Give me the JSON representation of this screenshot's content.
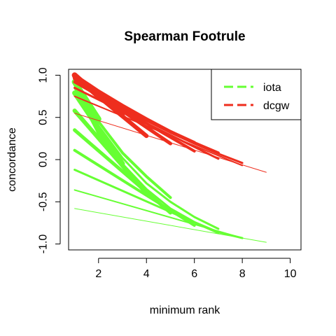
{
  "chart_data": {
    "type": "line",
    "title": "Spearman Footrule",
    "xlabel": "minimum rank",
    "ylabel": "concordance",
    "xlim": [
      0.75,
      10.45
    ],
    "ylim": [
      -1.07,
      1.07
    ],
    "x_ticks": [
      2,
      4,
      6,
      8,
      10
    ],
    "x_tick_labels": [
      "2",
      "4",
      "6",
      "8",
      "10"
    ],
    "y_ticks": [
      -1.0,
      -0.5,
      0.0,
      0.5,
      1.0
    ],
    "y_tick_labels": [
      "-1.0",
      "-0.5",
      "0.0",
      "0.5",
      "1.0"
    ],
    "grid": false,
    "legend": {
      "position": "top-right",
      "entries": [
        {
          "label": "iota",
          "color": "#66ff33",
          "style": "dashed"
        },
        {
          "label": "dcgw",
          "color": "#ee2e1e",
          "style": "dashed"
        }
      ]
    },
    "series": [
      {
        "group": "iota",
        "color": "#66ff33",
        "width": 1,
        "x": [
          1,
          9
        ],
        "y": [
          -0.58,
          -0.98
        ]
      },
      {
        "group": "iota",
        "color": "#66ff33",
        "width": 2,
        "x": [
          1,
          8
        ],
        "y": [
          -0.36,
          -0.93
        ]
      },
      {
        "group": "iota",
        "color": "#66ff33",
        "width": 3,
        "x": [
          1,
          7
        ],
        "y": [
          -0.12,
          -0.87
        ]
      },
      {
        "group": "iota",
        "color": "#66ff33",
        "width": 4,
        "x": [
          1,
          6
        ],
        "y": [
          0.11,
          -0.78
        ]
      },
      {
        "group": "iota",
        "color": "#66ff33",
        "width": 5,
        "x": [
          1,
          5
        ],
        "y": [
          0.35,
          -0.63
        ]
      },
      {
        "group": "iota",
        "color": "#66ff33",
        "width": 6,
        "x": [
          1,
          4
        ],
        "y": [
          0.58,
          -0.4
        ]
      },
      {
        "group": "iota",
        "color": "#66ff33",
        "width": 7,
        "x": [
          1,
          3
        ],
        "y": [
          0.79,
          -0.05
        ]
      },
      {
        "group": "iota",
        "color": "#66ff33",
        "width": 8,
        "x": [
          1,
          2
        ],
        "y": [
          0.92,
          0.48
        ]
      },
      {
        "group": "iota",
        "color": "#66ff33",
        "width": 3,
        "x": [
          1,
          2,
          3,
          4,
          5,
          6,
          7,
          8
        ],
        "y": [
          0.85,
          0.3,
          -0.05,
          -0.35,
          -0.58,
          -0.74,
          -0.86,
          -0.93
        ]
      },
      {
        "group": "iota",
        "color": "#66ff33",
        "width": 3,
        "x": [
          1,
          2,
          3,
          4,
          5,
          6,
          7
        ],
        "y": [
          0.88,
          0.4,
          0.02,
          -0.28,
          -0.5,
          -0.68,
          -0.82
        ]
      },
      {
        "group": "iota",
        "color": "#66ff33",
        "width": 4,
        "x": [
          1,
          2,
          3,
          4,
          5
        ],
        "y": [
          0.9,
          0.45,
          0.08,
          -0.2,
          -0.45
        ]
      },
      {
        "group": "dcgw",
        "color": "#ee2e1e",
        "width": 1,
        "x": [
          1,
          9
        ],
        "y": [
          0.55,
          -0.15
        ]
      },
      {
        "group": "dcgw",
        "color": "#ee2e1e",
        "width": 2,
        "x": [
          1,
          8
        ],
        "y": [
          0.75,
          -0.07
        ]
      },
      {
        "group": "dcgw",
        "color": "#ee2e1e",
        "width": 3,
        "x": [
          1,
          7
        ],
        "y": [
          0.85,
          0.01
        ]
      },
      {
        "group": "dcgw",
        "color": "#ee2e1e",
        "width": 4,
        "x": [
          1,
          6
        ],
        "y": [
          0.92,
          0.1
        ]
      },
      {
        "group": "dcgw",
        "color": "#ee2e1e",
        "width": 5,
        "x": [
          1,
          5
        ],
        "y": [
          0.96,
          0.19
        ]
      },
      {
        "group": "dcgw",
        "color": "#ee2e1e",
        "width": 6,
        "x": [
          1,
          4
        ],
        "y": [
          0.98,
          0.28
        ]
      },
      {
        "group": "dcgw",
        "color": "#ee2e1e",
        "width": 7,
        "x": [
          1,
          3
        ],
        "y": [
          0.99,
          0.52
        ]
      },
      {
        "group": "dcgw",
        "color": "#ee2e1e",
        "width": 8,
        "x": [
          1,
          2
        ],
        "y": [
          1.0,
          0.75
        ]
      },
      {
        "group": "dcgw",
        "color": "#ee2e1e",
        "width": 3,
        "x": [
          1,
          2,
          3,
          4,
          5,
          6,
          7,
          8
        ],
        "y": [
          0.99,
          0.78,
          0.61,
          0.46,
          0.32,
          0.19,
          0.07,
          -0.04
        ]
      },
      {
        "group": "dcgw",
        "color": "#ee2e1e",
        "width": 4,
        "x": [
          1,
          2,
          3,
          4,
          5,
          6,
          7
        ],
        "y": [
          1.0,
          0.8,
          0.63,
          0.48,
          0.33,
          0.2,
          0.08
        ]
      },
      {
        "group": "dcgw",
        "color": "#ee2e1e",
        "width": 5,
        "x": [
          1,
          2,
          3,
          4,
          5,
          6
        ],
        "y": [
          1.0,
          0.81,
          0.64,
          0.48,
          0.33,
          0.2
        ]
      }
    ]
  }
}
